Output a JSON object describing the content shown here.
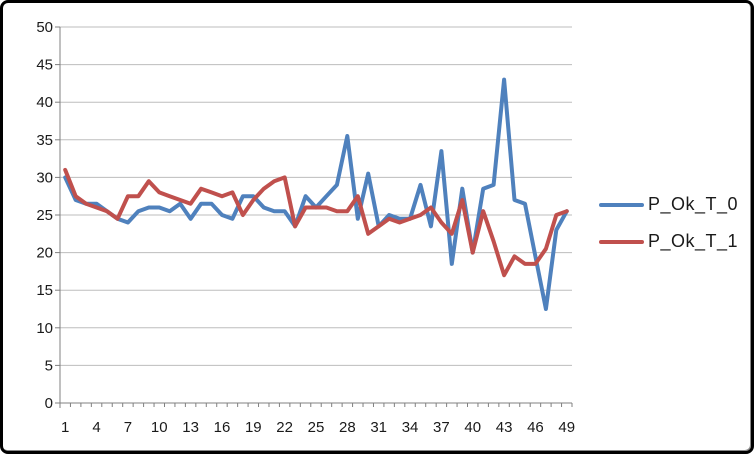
{
  "chart_data": {
    "type": "line",
    "title": "",
    "xlabel": "",
    "ylabel": "",
    "ylim": [
      0,
      50
    ],
    "y_ticks": [
      0,
      5,
      10,
      15,
      20,
      25,
      30,
      35,
      40,
      45,
      50
    ],
    "x_categories_count": 49,
    "x_tick_labels": [
      1,
      4,
      7,
      10,
      13,
      16,
      19,
      22,
      25,
      28,
      31,
      34,
      37,
      40,
      43,
      46,
      49
    ],
    "grid": true,
    "legend_position": "right",
    "axis_color": "#808080",
    "gridline_color": "#bdbdbd",
    "label_color": "#1a1a1a",
    "series": [
      {
        "name": "P_Ok_T_0",
        "color": "#4F81BD",
        "values": [
          30,
          27,
          26.5,
          26.5,
          25.5,
          24.5,
          24,
          25.5,
          26,
          26,
          25.5,
          26.5,
          24.5,
          26.5,
          26.5,
          25,
          24.5,
          27.5,
          27.5,
          26,
          25.5,
          25.5,
          23.5,
          27.5,
          26,
          27.5,
          29,
          35.5,
          24.5,
          30.5,
          23.5,
          25,
          24.5,
          24.5,
          29,
          23.5,
          33.5,
          18.5,
          28.5,
          20,
          28.5,
          29,
          43,
          27,
          26.5,
          19.5,
          12.5,
          23,
          25.5
        ]
      },
      {
        "name": "P_Ok_T_1",
        "color": "#C0504D",
        "values": [
          31,
          27.5,
          26.5,
          26,
          25.5,
          24.5,
          27.5,
          27.5,
          29.5,
          28,
          27.5,
          27,
          26.5,
          28.5,
          28,
          27.5,
          28,
          25,
          27,
          28.5,
          29.5,
          30,
          23.5,
          26,
          26,
          26,
          25.5,
          25.5,
          27.5,
          22.5,
          23.5,
          24.5,
          24,
          24.5,
          25,
          26,
          24,
          22.5,
          27,
          20,
          25.5,
          21.5,
          17,
          19.5,
          18.5,
          18.5,
          20.5,
          25,
          25.5
        ]
      }
    ]
  }
}
